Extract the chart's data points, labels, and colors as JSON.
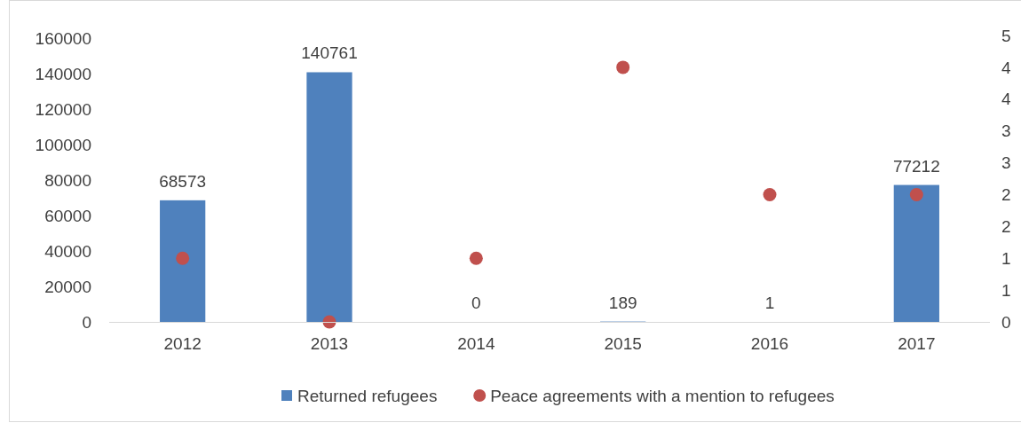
{
  "chart_data": {
    "type": "bar",
    "categories": [
      "2012",
      "2013",
      "2014",
      "2015",
      "2016",
      "2017"
    ],
    "series": [
      {
        "name": "Returned refugees",
        "color": "#4f81bd",
        "values": [
          68573,
          140761,
          0,
          189,
          1,
          77212
        ],
        "value_labels": [
          "68573",
          "140761",
          "0",
          "189",
          "1",
          "77212"
        ]
      },
      {
        "name": "Peace agreements with a mention to refugees",
        "type": "scatter",
        "axis": "y2",
        "color": "#c0504d",
        "values": [
          1,
          0,
          1,
          4,
          2,
          2
        ]
      }
    ],
    "ylim": [
      0,
      160000
    ],
    "yticks": [
      0,
      20000,
      40000,
      60000,
      80000,
      100000,
      120000,
      140000,
      160000
    ],
    "y2lim": [
      0,
      4.5
    ],
    "y2ticks": [
      0,
      {
        "value": 0.5,
        "label": "1"
      },
      1,
      {
        "value": 1.5,
        "label": "2"
      },
      2,
      {
        "value": 2.5,
        "label": "3"
      },
      3,
      {
        "value": 3.5,
        "label": "4"
      },
      4,
      {
        "value": 4.5,
        "label": "5"
      }
    ],
    "legend": "bottom",
    "marker": "circle"
  }
}
